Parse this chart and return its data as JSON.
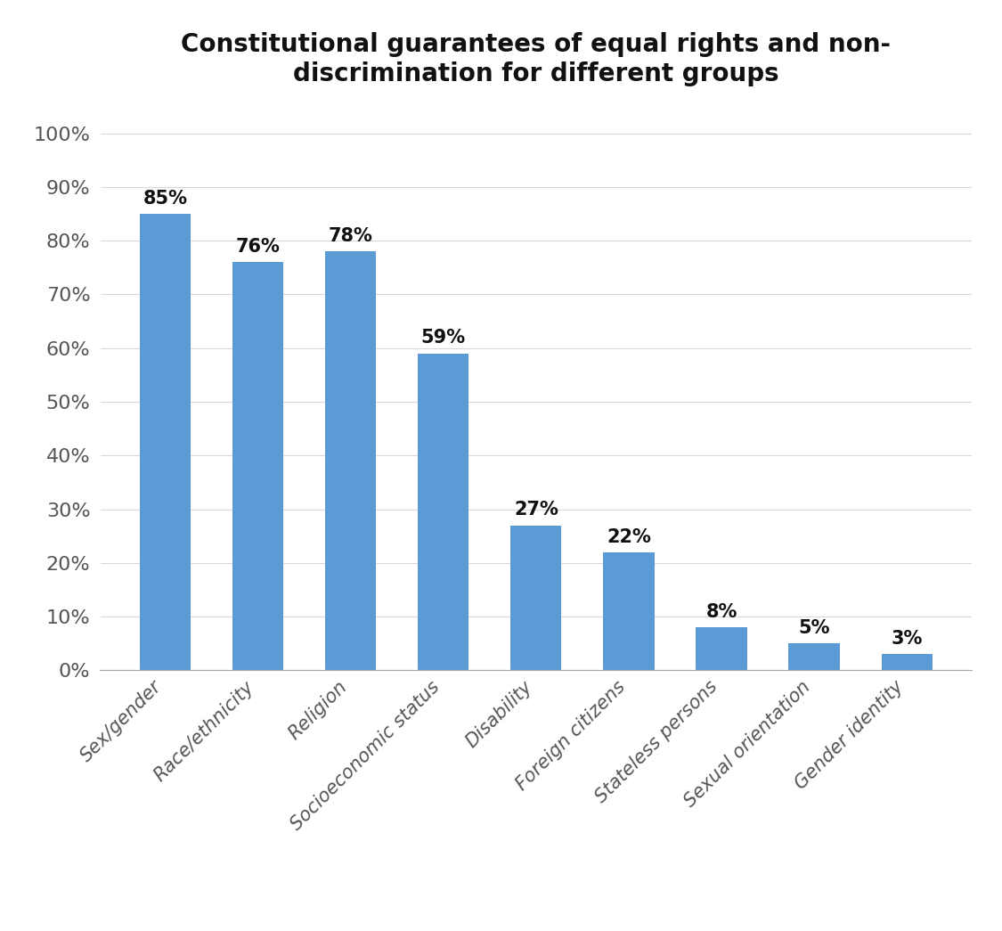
{
  "title": "Constitutional guarantees of equal rights and non-\ndiscrimination for different groups",
  "categories": [
    "Sex/gender",
    "Race/ethnicity",
    "Religion",
    "Socioeconomic status",
    "Disability",
    "Foreign citizens",
    "Stateless persons",
    "Sexual orientation",
    "Gender identity"
  ],
  "values": [
    85,
    76,
    78,
    59,
    27,
    22,
    8,
    5,
    3
  ],
  "bar_color": "#5b9bd5",
  "ylim": [
    0,
    100
  ],
  "yticks": [
    0,
    10,
    20,
    30,
    40,
    50,
    60,
    70,
    80,
    90,
    100
  ],
  "ytick_labels": [
    "0%",
    "10%",
    "20%",
    "30%",
    "40%",
    "50%",
    "60%",
    "70%",
    "80%",
    "90%",
    "100%"
  ],
  "title_fontsize": 20,
  "tick_fontsize": 16,
  "label_fontsize": 15,
  "annotation_fontsize": 15,
  "background_color": "#ffffff",
  "grid_color": "#d9d9d9"
}
